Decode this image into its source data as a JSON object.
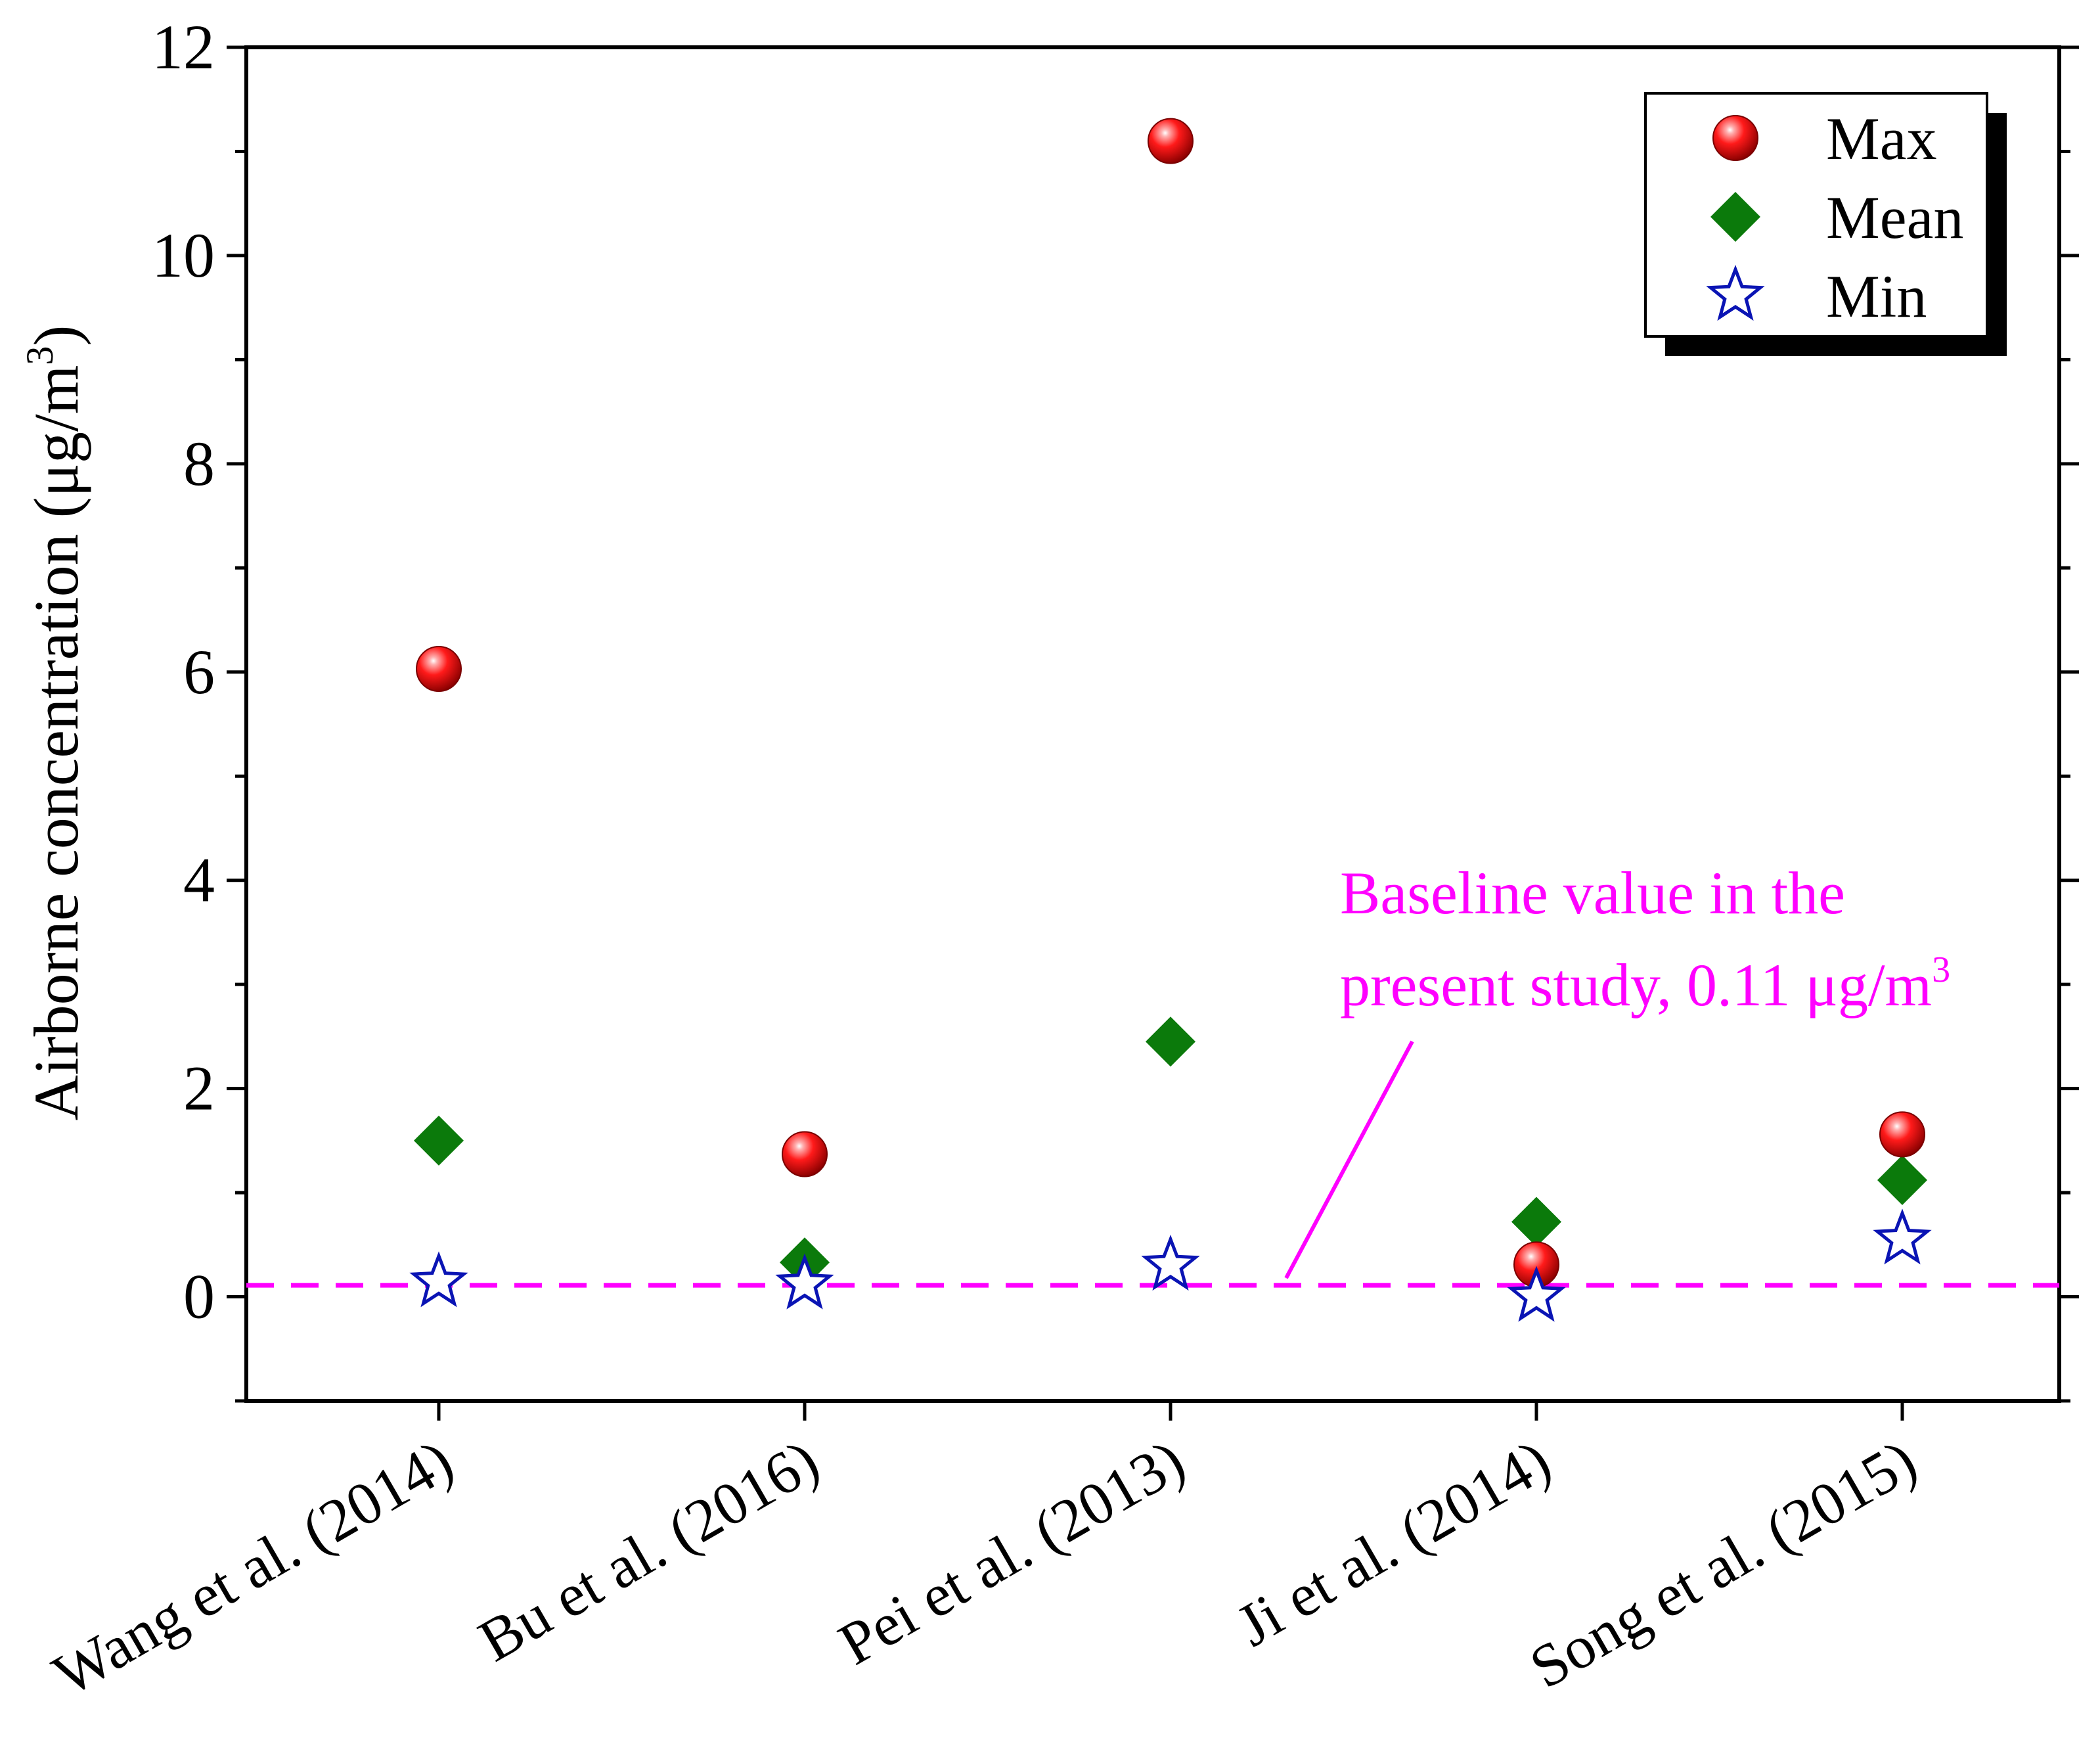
{
  "chart_data": {
    "type": "scatter",
    "title": "",
    "xlabel": "",
    "ylabel": "Airborne concentration (μg/m",
    "ylabel_superscript": "3",
    "ylabel_close": ")",
    "ylim": [
      -1,
      12
    ],
    "yticks": [
      0,
      2,
      4,
      6,
      8,
      10,
      12
    ],
    "ytick_labels": [
      "0",
      "2",
      "4",
      "6",
      "8",
      "10",
      "12"
    ],
    "categories": [
      "Wang et al. (2014)",
      "Bu et al. (2016)",
      "Pei et al. (2013)",
      "Ji et al. (2014)",
      "Song et al. (2015)"
    ],
    "series": [
      {
        "name": "Max",
        "marker": "sphere",
        "color": "#e8000b",
        "values": [
          6.03,
          1.37,
          11.1,
          0.31,
          1.56
        ]
      },
      {
        "name": "Mean",
        "marker": "diamond",
        "color": "#0b7a0b",
        "values": [
          1.5,
          0.33,
          2.45,
          0.72,
          1.12
        ]
      },
      {
        "name": "Min",
        "marker": "star",
        "color": "#0a14b4",
        "values": [
          0.14,
          0.12,
          0.3,
          0.0,
          0.55
        ]
      }
    ],
    "baseline": {
      "value": 0.11,
      "color": "#ff00ff",
      "style": "dashed",
      "annotation_line1": "Baseline value in the",
      "annotation_line2": "present study, 0.11 μg/m",
      "annotation_superscript": "3"
    },
    "legend_position": "top-right"
  }
}
